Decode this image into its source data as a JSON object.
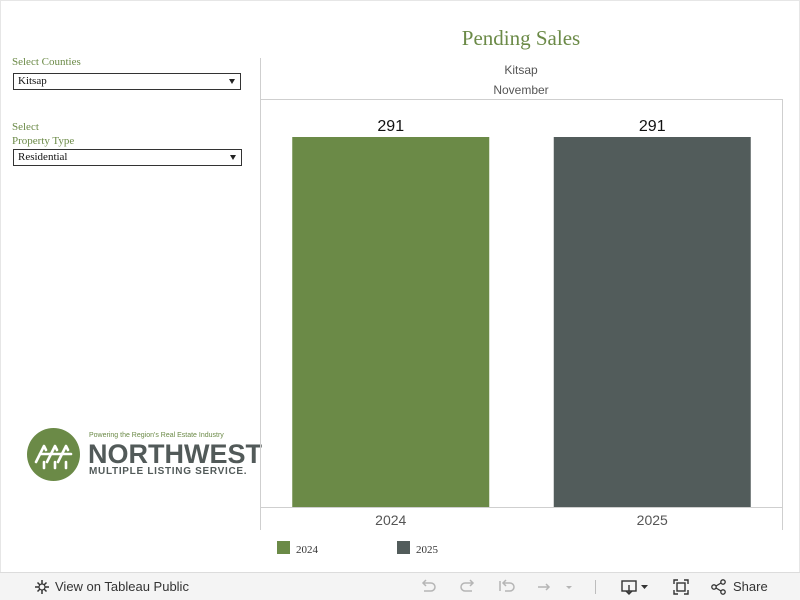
{
  "title": "Pending Sales",
  "filters": {
    "county_label": "Select Counties",
    "county_value": "Kitsap",
    "property_label_line1": "Select",
    "property_label_line2": "Property Type",
    "property_value": "Residential"
  },
  "logo": {
    "tagline": "Powering the Region's Real Estate Industry",
    "name": "NORTHWEST",
    "subtitle": "MULTIPLE LISTING SERVICE."
  },
  "chart_data": {
    "type": "bar",
    "header_row": "Kitsap",
    "header_col": "November",
    "categories": [
      "2024",
      "2025"
    ],
    "values": [
      291,
      291
    ],
    "colors": [
      "#6b8a47",
      "#525c5b"
    ],
    "legend": [
      "2024",
      "2025"
    ],
    "ylim": [
      0,
      291
    ],
    "grid": false,
    "legend_position": "bottom-left"
  },
  "toolbar": {
    "view_label": "View on Tableau Public",
    "share_label": "Share"
  },
  "colors": {
    "accent_green": "#6b8a47",
    "dark_gray": "#525c5b"
  }
}
